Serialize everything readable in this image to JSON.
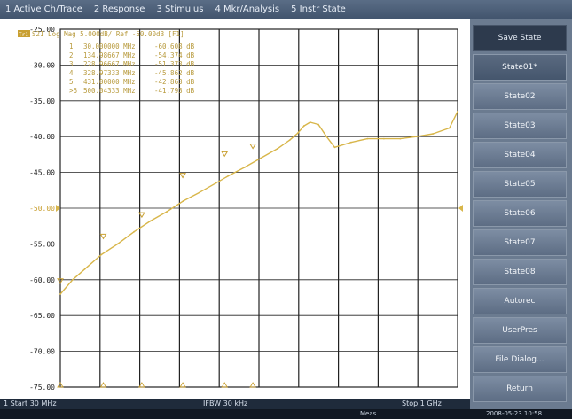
{
  "menu": [
    "1 Active Ch/Trace",
    "2 Response",
    "3 Stimulus",
    "4 Mkr/Analysis",
    "5 Instr State"
  ],
  "trace_header": "S21 Log Mag 5.000dB/ Ref -50.00dB [F1]",
  "trace_tag": "Tr1",
  "markers": [
    {
      "num": "1",
      "freq": "30.000000 MHz",
      "value": "-60.608 dB"
    },
    {
      "num": "2",
      "freq": "134.98667 MHz",
      "value": "-54.374 dB"
    },
    {
      "num": "3",
      "freq": "228.96667 MHz",
      "value": "-51.373 dB"
    },
    {
      "num": "4",
      "freq": "328.97333 MHz",
      "value": "-45.862 dB"
    },
    {
      "num": "5",
      "freq": "431.00000 MHz",
      "value": "-42.863 dB"
    },
    {
      "num": ">6",
      "freq": "500.04333 MHz",
      "value": "-41.793 dB"
    }
  ],
  "status": {
    "start": "1 Start 30 MHz",
    "ifbw": "IFBW 30 kHz",
    "stop": "Stop 1 GHz"
  },
  "bottom": {
    "meas": "Meas",
    "datetime": "2008-05-23 10:58"
  },
  "softkeys": [
    {
      "label": "Save State",
      "title": true
    },
    {
      "label": "State01*"
    },
    {
      "label": "State02"
    },
    {
      "label": "State03"
    },
    {
      "label": "State04"
    },
    {
      "label": "State05"
    },
    {
      "label": "State06"
    },
    {
      "label": "State07"
    },
    {
      "label": "State08"
    },
    {
      "label": "Autorec"
    },
    {
      "label": "UserPres"
    },
    {
      "label": "File Dialog..."
    },
    {
      "label": "Return"
    }
  ],
  "chart_data": {
    "type": "line",
    "title": "S21 Log Mag 5.000dB/ Ref -50.00dB [F1]",
    "xlabel": "",
    "ylabel": "",
    "xlim": [
      30,
      1000
    ],
    "ylim": [
      -75,
      -25
    ],
    "ref_level": -50,
    "y_ticks": [
      "-25.00",
      "-30.00",
      "-35.00",
      "-40.00",
      "-45.00",
      "-50.00",
      "-55.00",
      "-60.00",
      "-65.00",
      "-70.00",
      "-75.00"
    ],
    "series": [
      {
        "x": [
          30,
          60,
          90,
          130,
          170,
          210,
          250,
          290,
          330,
          370,
          410,
          440,
          480,
          520,
          560,
          590,
          610,
          625,
          640,
          660,
          680,
          700,
          740,
          780,
          820,
          860,
          900,
          940,
          980,
          1000
        ],
        "y": [
          -62,
          -60,
          -58.5,
          -56.5,
          -55,
          -53.3,
          -51.8,
          -50.5,
          -49,
          -47.8,
          -46.5,
          -45.5,
          -44.3,
          -43,
          -41.7,
          -40.5,
          -39.5,
          -38.5,
          -38,
          -38.3,
          -40,
          -41.5,
          -40.8,
          -40.3,
          -40.3,
          -40.3,
          -40,
          -39.6,
          -38.8,
          -36.5
        ]
      }
    ],
    "markers": [
      {
        "x": 30,
        "y": -60.608
      },
      {
        "x": 134.98667,
        "y": -54.374
      },
      {
        "x": 228.96667,
        "y": -51.373
      },
      {
        "x": 328.97333,
        "y": -45.862
      },
      {
        "x": 431.0,
        "y": -42.863
      },
      {
        "x": 500.04333,
        "y": -41.793
      }
    ],
    "grid": true,
    "colors": {
      "trace": "#d8b64a",
      "grid": "#222222",
      "menubar": "#4a5d77",
      "softkey": "#6b7b90"
    }
  }
}
